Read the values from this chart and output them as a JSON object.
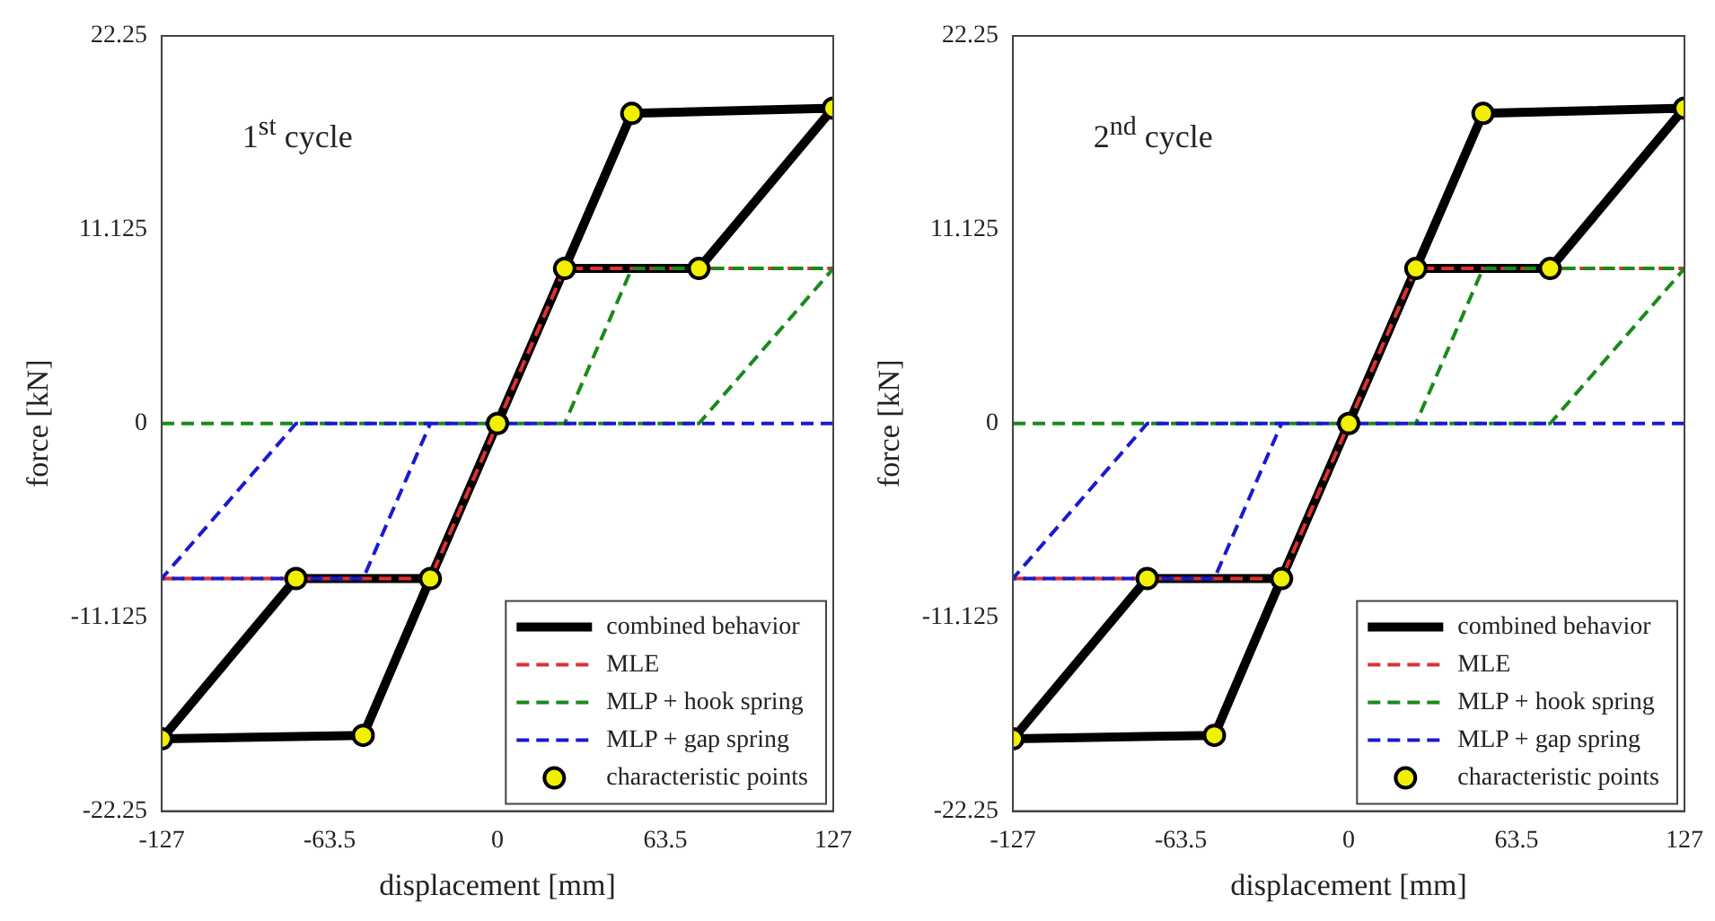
{
  "chart_data": [
    {
      "type": "line",
      "annotations": [
        "1$^{st}$ cycle"
      ],
      "xlabel": "displacement [mm]",
      "ylabel": "force [kN]",
      "xlim": [
        -127,
        127
      ],
      "ylim": [
        -22.25,
        22.25
      ],
      "xticks": [
        -127,
        -63.5,
        0,
        63.5,
        127
      ],
      "yticks": [
        -22.25,
        -11.125,
        0,
        11.125,
        22.25
      ],
      "legend": "bottom right",
      "series": [
        {
          "name": "combined behavior",
          "color": "#000000",
          "line_style": "solid",
          "x": [
            0,
            25.4,
            50.8,
            127,
            76.2,
            25.4,
            0,
            -25.4,
            -50.8,
            -127,
            -76.2,
            -25.4
          ],
          "values": [
            0,
            8.9,
            17.8,
            18.1,
            8.9,
            8.9,
            0,
            -8.9,
            -17.9,
            -18.1,
            -8.9,
            -8.9
          ]
        },
        {
          "name": "MLE",
          "color": "#e03030",
          "line_style": "dashed",
          "x": [
            -127,
            -25.4,
            25.4,
            127
          ],
          "values": [
            -8.9,
            -8.9,
            8.9,
            8.9
          ]
        },
        {
          "name": "MLP + hook spring",
          "color": "#1a8a1a",
          "line_style": "dashed",
          "x": [
            -127,
            25.4,
            50.8,
            127,
            76.2,
            25.4
          ],
          "values": [
            0,
            0,
            8.9,
            8.9,
            0,
            0
          ]
        },
        {
          "name": "MLP + gap spring",
          "color": "#1a1ad0",
          "line_style": "dashed",
          "x": [
            127,
            -25.4,
            -50.8,
            -127,
            -76.2,
            -25.4
          ],
          "values": [
            0,
            0,
            -8.9,
            -8.9,
            0,
            0
          ]
        },
        {
          "name": "characteristic points",
          "type": "scatter",
          "color": "#f0f000",
          "marker": "circle",
          "x": [
            0,
            25.4,
            50.8,
            127,
            76.2,
            -25.4,
            -50.8,
            -127,
            -76.2
          ],
          "values": [
            0,
            8.9,
            17.8,
            18.1,
            8.9,
            -8.9,
            -17.9,
            -18.1,
            -8.9
          ]
        }
      ]
    },
    {
      "type": "line",
      "annotations": [
        "2$^{nd}$ cycle"
      ],
      "xlabel": "displacement [mm]",
      "ylabel": "force [kN]",
      "xlim": [
        -127,
        127
      ],
      "ylim": [
        -22.25,
        22.25
      ],
      "xticks": [
        -127,
        -63.5,
        0,
        63.5,
        127
      ],
      "yticks": [
        -22.25,
        -11.125,
        0,
        11.125,
        22.25
      ],
      "legend": "bottom right",
      "series": [
        {
          "name": "combined behavior",
          "color": "#000000",
          "line_style": "solid",
          "x": [
            0,
            25.4,
            50.8,
            127,
            76.2,
            25.4,
            0,
            -25.4,
            -50.8,
            -127,
            -76.2,
            -25.4
          ],
          "values": [
            0,
            8.9,
            17.8,
            18.1,
            8.9,
            8.9,
            0,
            -8.9,
            -17.9,
            -18.1,
            -8.9,
            -8.9
          ]
        },
        {
          "name": "MLE",
          "color": "#e03030",
          "line_style": "dashed",
          "x": [
            -127,
            -25.4,
            25.4,
            127
          ],
          "values": [
            -8.9,
            -8.9,
            8.9,
            8.9
          ]
        },
        {
          "name": "MLP + hook spring",
          "color": "#1a8a1a",
          "line_style": "dashed",
          "x": [
            -127,
            25.4,
            50.8,
            127,
            76.2,
            25.4
          ],
          "values": [
            0,
            0,
            8.9,
            8.9,
            0,
            0
          ]
        },
        {
          "name": "MLP + gap spring",
          "color": "#1a1ad0",
          "line_style": "dashed",
          "x": [
            127,
            -25.4,
            -50.8,
            -127,
            -76.2,
            -25.4
          ],
          "values": [
            0,
            0,
            -8.9,
            -8.9,
            0,
            0
          ]
        },
        {
          "name": "characteristic points",
          "type": "scatter",
          "color": "#f0f000",
          "marker": "circle",
          "x": [
            0,
            25.4,
            50.8,
            127,
            76.2,
            -25.4,
            -50.8,
            -127,
            -76.2
          ],
          "values": [
            0,
            8.9,
            17.8,
            18.1,
            8.9,
            -8.9,
            -17.9,
            -18.1,
            -8.9
          ]
        }
      ]
    }
  ]
}
